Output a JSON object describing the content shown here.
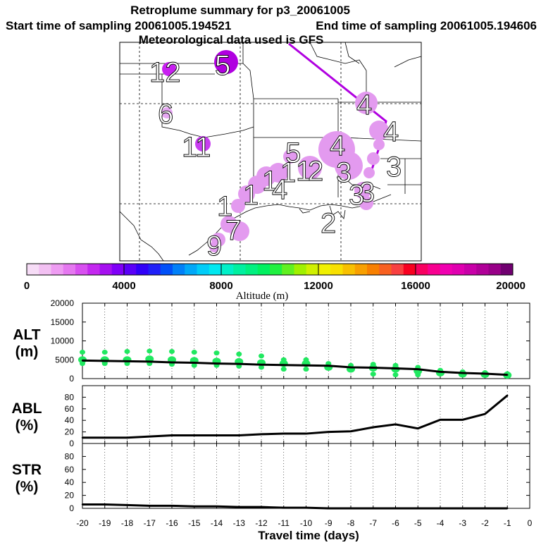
{
  "header": {
    "title": "Retroplume summary for p3_20061005",
    "start": "Start time of sampling 20061005.194521",
    "end": "End time of sampling 20061005.194606",
    "met": "Meteorological data used is GFS"
  },
  "map": {
    "plume_labels": [
      {
        "text": "12",
        "color": "#c820f0"
      },
      {
        "text": "5",
        "color": "#b000e0"
      },
      {
        "text": "6",
        "color": "#e6a8f2"
      },
      {
        "text": "11",
        "color": "#c83ef0"
      },
      {
        "text": "4",
        "color": "#e39aef"
      },
      {
        "text": "4",
        "color": "#e39aef"
      },
      {
        "text": "3",
        "color": "#e39aef"
      },
      {
        "text": "5",
        "color": "#e39aef"
      },
      {
        "text": "4",
        "color": "#e39aef"
      },
      {
        "text": "1",
        "color": "#e39aef"
      },
      {
        "text": "1",
        "color": "#e39aef"
      },
      {
        "text": "2",
        "color": "#e39aef"
      },
      {
        "text": "3",
        "color": "#e39aef"
      },
      {
        "text": "3",
        "color": "#e39aef"
      },
      {
        "text": "1",
        "color": "#e39aef"
      },
      {
        "text": "1",
        "color": "#e39aef"
      },
      {
        "text": "4",
        "color": "#e39aef"
      },
      {
        "text": "3",
        "color": "#e39aef"
      },
      {
        "text": "2",
        "color": "#e39aef"
      },
      {
        "text": "7",
        "color": "#e39aef"
      },
      {
        "text": "9",
        "color": "#e39aef"
      },
      {
        "text": "1",
        "color": "#e39aef"
      }
    ]
  },
  "colorbar": {
    "ticks": [
      "0",
      "4000",
      "8000",
      "12000",
      "16000",
      "20000"
    ],
    "label": "Altitude (m)",
    "colors": [
      "#f6dcf6",
      "#f2c0f2",
      "#ee9cf2",
      "#e578f0",
      "#d850f0",
      "#c428f0",
      "#a610f0",
      "#8000f8",
      "#5a00f8",
      "#3000f8",
      "#2020f8",
      "#0050f8",
      "#0080f8",
      "#00a8f8",
      "#00ccf8",
      "#00e8f0",
      "#00f0c8",
      "#00f0a0",
      "#00f080",
      "#00f060",
      "#20f040",
      "#60f020",
      "#a0f000",
      "#d0f000",
      "#f0f000",
      "#f8e000",
      "#f8c000",
      "#f8a000",
      "#f88000",
      "#f86020",
      "#f84040",
      "#f80020",
      "#f80060",
      "#f80090",
      "#f000b0",
      "#e000b0",
      "#c800a8",
      "#b00098",
      "#980088",
      "#700070"
    ]
  },
  "chart_data": [
    {
      "type": "line",
      "panel": "ALT",
      "ylabel": [
        "ALT",
        "(m)"
      ],
      "ylim": [
        0,
        20000
      ],
      "yticks": [
        "20000",
        "15000",
        "10000",
        "5000",
        "0"
      ],
      "x": [
        -20,
        -19,
        -18,
        -17,
        -16,
        -15,
        -14,
        -13,
        -12,
        -11,
        -10,
        -9,
        -8,
        -7,
        -6,
        -5,
        -4,
        -3,
        -2,
        -1
      ],
      "values": [
        4800,
        4700,
        4600,
        4500,
        4300,
        4200,
        4000,
        3900,
        3700,
        3600,
        3500,
        3400,
        3000,
        2900,
        2700,
        2500,
        1800,
        1500,
        1300,
        1000
      ],
      "scatter": [
        {
          "x": -20,
          "y": [
            7000,
            5000,
            4000
          ]
        },
        {
          "x": -19,
          "y": [
            7000,
            5000,
            4000
          ]
        },
        {
          "x": -18,
          "y": [
            7200,
            5000,
            4000
          ]
        },
        {
          "x": -17,
          "y": [
            7300,
            5200,
            4000
          ]
        },
        {
          "x": -16,
          "y": [
            7200,
            5000,
            3800
          ]
        },
        {
          "x": -15,
          "y": [
            7000,
            4800,
            3500
          ]
        },
        {
          "x": -14,
          "y": [
            6800,
            4600,
            3500
          ]
        },
        {
          "x": -13,
          "y": [
            6500,
            4500,
            3300
          ]
        },
        {
          "x": -12,
          "y": [
            6000,
            4200,
            3000
          ]
        },
        {
          "x": -11,
          "y": [
            5000,
            4000,
            2500
          ]
        },
        {
          "x": -10,
          "y": [
            5000,
            4000,
            2500
          ]
        },
        {
          "x": -9,
          "y": [
            4000,
            3000
          ]
        },
        {
          "x": -8,
          "y": [
            3500,
            2500
          ]
        },
        {
          "x": -7,
          "y": [
            3800,
            2800,
            1200
          ]
        },
        {
          "x": -6,
          "y": [
            3500,
            2500,
            1000
          ]
        },
        {
          "x": -5,
          "y": [
            3000,
            2000,
            1000
          ]
        },
        {
          "x": -4,
          "y": [
            2200,
            1500
          ]
        },
        {
          "x": -3,
          "y": [
            1800,
            1200
          ]
        },
        {
          "x": -2,
          "y": [
            1600,
            1100
          ]
        },
        {
          "x": -1,
          "y": [
            1300,
            900
          ]
        }
      ]
    },
    {
      "type": "line",
      "panel": "ABL",
      "ylabel": [
        "ABL",
        "(%)"
      ],
      "ylim": [
        0,
        100
      ],
      "yticks": [
        "80",
        "60",
        "40",
        "20",
        "0"
      ],
      "x": [
        -20,
        -19,
        -18,
        -17,
        -16,
        -15,
        -14,
        -13,
        -12,
        -11,
        -10,
        -9,
        -8,
        -7,
        -6,
        -5,
        -4,
        -3,
        -2,
        -1
      ],
      "values": [
        10,
        10,
        10,
        12,
        14,
        14,
        14,
        14,
        16,
        17,
        17,
        20,
        21,
        28,
        33,
        26,
        41,
        41,
        51,
        83
      ]
    },
    {
      "type": "line",
      "panel": "STR",
      "ylabel": [
        "STR",
        "(%)"
      ],
      "ylim": [
        0,
        100
      ],
      "yticks": [
        "80",
        "60",
        "40",
        "20",
        "0"
      ],
      "x": [
        -20,
        -19,
        -18,
        -17,
        -16,
        -15,
        -14,
        -13,
        -12,
        -11,
        -10,
        -9,
        -8,
        -7,
        -6,
        -5,
        -4,
        -3,
        -2,
        -1
      ],
      "values": [
        6,
        6,
        5,
        4,
        4,
        3,
        3,
        2,
        2,
        1,
        1,
        0,
        0,
        0,
        0,
        0,
        0,
        0,
        0,
        0
      ]
    }
  ],
  "xaxis": {
    "ticks": [
      "-20",
      "-19",
      "-18",
      "-17",
      "-16",
      "-15",
      "-14",
      "-13",
      "-12",
      "-11",
      "-10",
      "-9",
      "-8",
      "-7",
      "-6",
      "-5",
      "-4",
      "-3",
      "-2",
      "-1",
      "0"
    ],
    "label": "Travel time (days)"
  },
  "colors": {
    "line": "#000000",
    "scatter": "#20e860",
    "plume": "#e39aef",
    "path": "#b000e0"
  }
}
